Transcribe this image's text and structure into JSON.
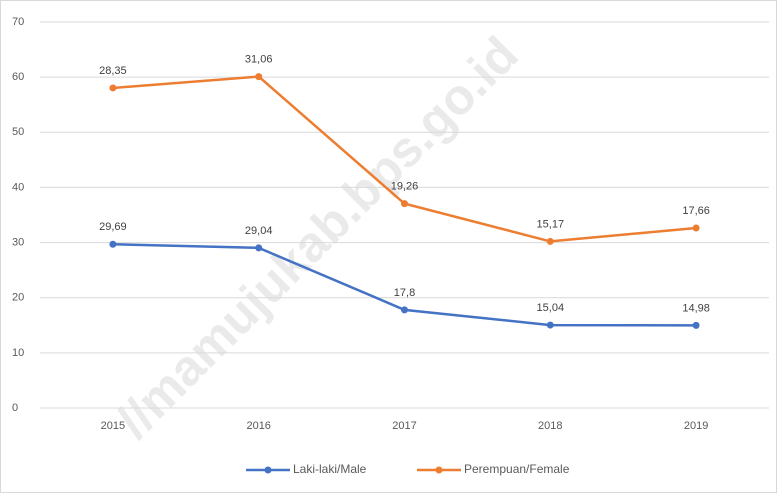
{
  "chart_data": {
    "type": "line",
    "stacked": true,
    "watermark": "//mamujukab.bps.go.id",
    "categories": [
      "2015",
      "2016",
      "2017",
      "2018",
      "2019"
    ],
    "series": [
      {
        "name": "Laki-laki/Male",
        "color": "#4472c4",
        "values": [
          29.69,
          29.04,
          17.8,
          15.04,
          14.98
        ],
        "value_labels": [
          "29,69",
          "29,04",
          "17,8",
          "15,04",
          "14,98"
        ]
      },
      {
        "name": "Perempuan/Female",
        "color": "#ed7d31",
        "values": [
          28.35,
          31.06,
          19.26,
          15.17,
          17.66
        ],
        "value_labels": [
          "28,35",
          "31,06",
          "19,26",
          "15,17",
          "17,66"
        ]
      }
    ],
    "ylim": [
      0,
      70
    ],
    "yticks": [
      0,
      10,
      20,
      30,
      40,
      50,
      60,
      70
    ],
    "grid": true
  }
}
